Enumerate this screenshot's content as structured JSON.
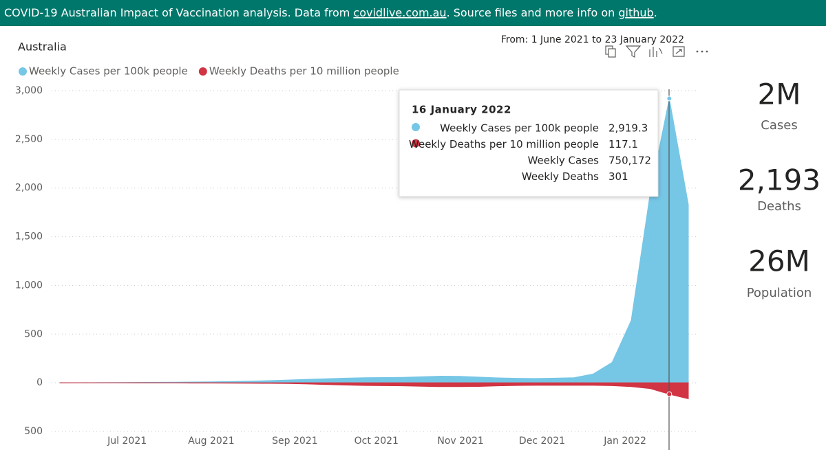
{
  "header": {
    "text_before": "COVID-19 Australian Impact of Vaccination analysis. Data from ",
    "link_data": "covidlive.com.au",
    "text_middle": ". Source files and more info on ",
    "link_source": "github",
    "text_after": "."
  },
  "date_range": "From: 1 June 2021 to 23 January 2022",
  "chart_data": {
    "type": "area",
    "title": "Australia",
    "categories": [
      null,
      null,
      null,
      null,
      null,
      null,
      null,
      null,
      null,
      null,
      null,
      null,
      null,
      null,
      null,
      null,
      null,
      null,
      null,
      null,
      null,
      null,
      null,
      null,
      null,
      null,
      null,
      null,
      null,
      null,
      null,
      null,
      null,
      null
    ],
    "series": [
      {
        "name": "Weekly Cases per 100k people",
        "color": "#76c6e6",
        "values": [
          1,
          1,
          2,
          3,
          4,
          5,
          6,
          8,
          10,
          13,
          17,
          22,
          28,
          35,
          42,
          48,
          52,
          54,
          56,
          62,
          68,
          66,
          58,
          50,
          46,
          44,
          48,
          52,
          90,
          210,
          640,
          1950,
          2919.3,
          1830
        ]
      },
      {
        "name": "Weekly Deaths per 10 million people",
        "color": "#d13443",
        "values": [
          -2,
          -1,
          -1,
          -1,
          -2,
          -2,
          -2,
          -3,
          -3,
          -4,
          -5,
          -6,
          -8,
          -12,
          -18,
          -24,
          -28,
          -30,
          -32,
          -36,
          -40,
          -40,
          -38,
          -32,
          -28,
          -26,
          -26,
          -26,
          -26,
          -30,
          -40,
          -60,
          -117.1,
          -165
        ]
      }
    ],
    "xlim": [
      0,
      33
    ],
    "xticks": [
      {
        "value": 3.53,
        "label": "Jul 2021"
      },
      {
        "value": 7.95,
        "label": "Aug 2021"
      },
      {
        "value": 12.34,
        "label": "Sep 2021"
      },
      {
        "value": 16.62,
        "label": "Oct 2021"
      },
      {
        "value": 21.04,
        "label": "Nov 2021"
      },
      {
        "value": 25.32,
        "label": "Dec 2021"
      },
      {
        "value": 29.68,
        "label": "Jan 2022"
      }
    ],
    "ylim": [
      -500,
      3000
    ],
    "yticks": [
      {
        "value": -500,
        "label": "500"
      },
      0,
      500,
      {
        "value": 1000,
        "label": "1,000"
      },
      {
        "value": 1500,
        "label": "1,500"
      },
      {
        "value": 2000,
        "label": "2,000"
      },
      {
        "value": 2500,
        "label": "2,500"
      },
      {
        "value": 3000,
        "label": "3,000"
      }
    ],
    "grid": true,
    "legend": "top-left"
  },
  "tooltip": {
    "title": "16 January 2022",
    "rows": [
      {
        "label": "Weekly Cases per 100k people",
        "value": "2,919.3"
      },
      {
        "label": "Weekly Deaths per 10 million people",
        "value": "117.1"
      },
      {
        "label": "Weekly Cases",
        "value": "750,172"
      },
      {
        "label": "Weekly Deaths",
        "value": "301"
      }
    ]
  },
  "cards": [
    {
      "value": "2M",
      "label": "Cases"
    },
    {
      "value": "2,193",
      "label": "Deaths"
    },
    {
      "value": "26M",
      "label": "Population"
    }
  ]
}
